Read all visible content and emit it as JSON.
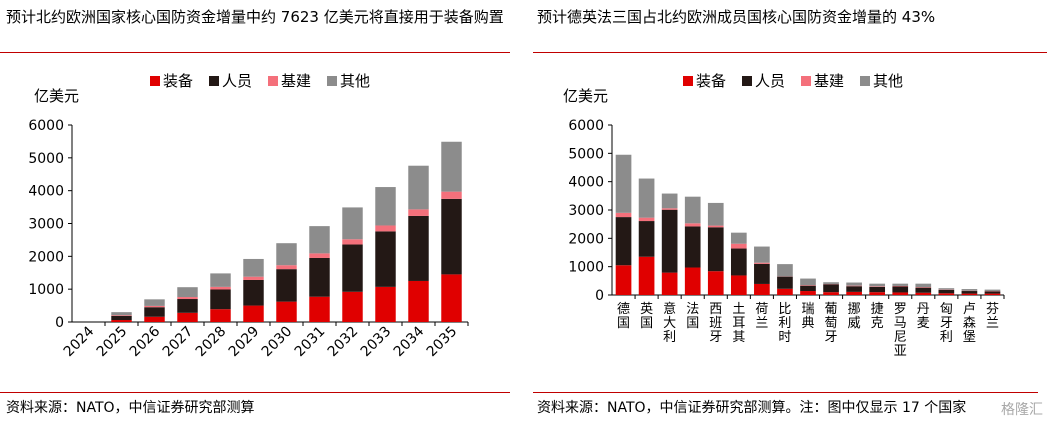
{
  "left": {
    "title": "预计北约欧洲国家核心国防资金增量中约 7623 亿美元将直接用于装备购置",
    "source": "资料来源：NATO，中信证券研究部测算"
  },
  "right": {
    "title": "预计德英法三国占北约欧洲成员国核心国防资金增量的 43%",
    "source": "资料来源：NATO，中信证券研究部测算。注：图中仅显示 17 个国家"
  },
  "watermark": "格隆汇",
  "chart_data": [
    {
      "type": "bar",
      "stacked": true,
      "title": "",
      "xlabel": "",
      "ylabel": "亿美元",
      "ylim": [
        0,
        6000
      ],
      "yticks": [
        0,
        1000,
        2000,
        3000,
        4000,
        5000,
        6000
      ],
      "grid": false,
      "legend_position": "top",
      "categories": [
        "2024",
        "2025",
        "2026",
        "2027",
        "2028",
        "2029",
        "2030",
        "2031",
        "2032",
        "2033",
        "2034",
        "2035"
      ],
      "series": [
        {
          "name": "装备",
          "color": "#e00000",
          "values": [
            0,
            60,
            160,
            280,
            390,
            500,
            620,
            770,
            920,
            1070,
            1250,
            1450
          ]
        },
        {
          "name": "人员",
          "color": "#231815",
          "values": [
            0,
            130,
            290,
            420,
            600,
            780,
            990,
            1180,
            1440,
            1690,
            1980,
            2300
          ]
        },
        {
          "name": "基建",
          "color": "#f4707b",
          "values": [
            0,
            20,
            40,
            60,
            80,
            100,
            120,
            140,
            160,
            180,
            200,
            220
          ]
        },
        {
          "name": "其他",
          "color": "#8c8c8c",
          "values": [
            0,
            90,
            200,
            300,
            410,
            540,
            670,
            830,
            970,
            1170,
            1330,
            1520
          ]
        }
      ]
    },
    {
      "type": "bar",
      "stacked": true,
      "title": "",
      "xlabel": "",
      "ylabel": "亿美元",
      "ylim": [
        0,
        6000
      ],
      "yticks": [
        0,
        1000,
        2000,
        3000,
        4000,
        5000,
        6000
      ],
      "grid": false,
      "legend_position": "top",
      "categories": [
        "德国",
        "英国",
        "意大利",
        "法国",
        "西班牙",
        "土耳其",
        "荷兰",
        "比利时",
        "瑞典",
        "葡萄牙",
        "挪威",
        "捷克",
        "罗马尼亚",
        "丹麦",
        "匈牙利",
        "卢森堡",
        "芬兰"
      ],
      "series": [
        {
          "name": "装备",
          "color": "#e00000",
          "values": [
            1050,
            1350,
            790,
            970,
            840,
            690,
            390,
            220,
            140,
            100,
            110,
            100,
            90,
            80,
            60,
            50,
            50
          ]
        },
        {
          "name": "人员",
          "color": "#231815",
          "values": [
            1700,
            1260,
            2220,
            1450,
            1550,
            950,
            710,
            430,
            190,
            280,
            200,
            190,
            210,
            180,
            120,
            90,
            80
          ]
        },
        {
          "name": "基建",
          "color": "#f4707b",
          "values": [
            150,
            120,
            50,
            110,
            60,
            170,
            40,
            10,
            20,
            10,
            20,
            20,
            20,
            20,
            10,
            10,
            10
          ]
        },
        {
          "name": "其他",
          "color": "#8c8c8c",
          "values": [
            2050,
            1380,
            520,
            940,
            800,
            390,
            570,
            430,
            230,
            60,
            110,
            90,
            80,
            120,
            50,
            60,
            50
          ]
        }
      ]
    }
  ]
}
